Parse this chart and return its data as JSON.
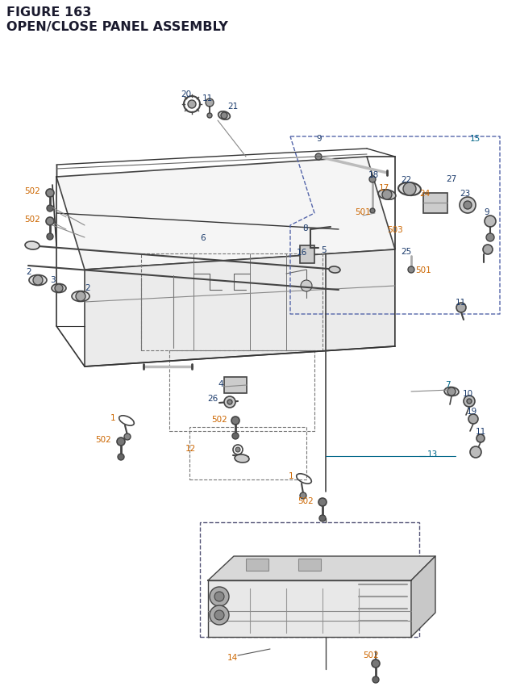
{
  "title_line1": "FIGURE 163",
  "title_line2": "OPEN/CLOSE PANEL ASSEMBLY",
  "title_color": "#1a1a2e",
  "title_fontsize": 11.5,
  "bg_color": "#ffffff",
  "lbl": "#1a3a6b",
  "org": "#cc6600",
  "teal": "#006688",
  "lc": "#333333",
  "pc": "#444444",
  "dc": "#5566aa",
  "fs": 7.5
}
